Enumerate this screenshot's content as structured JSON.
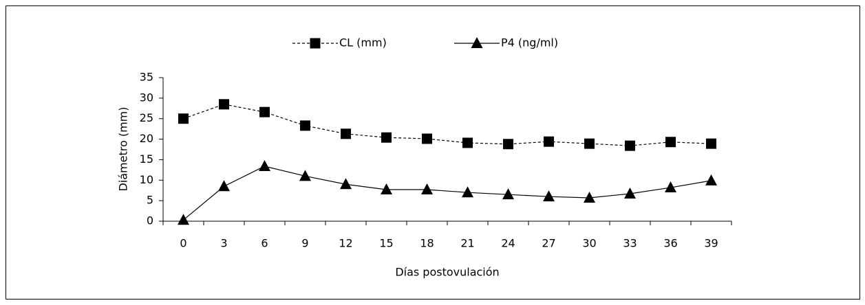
{
  "chart_data": {
    "type": "line",
    "xlabel": "Días postovulación",
    "ylabel": "Diámetro (mm)",
    "categories": [
      "0",
      "3",
      "6",
      "9",
      "12",
      "15",
      "18",
      "21",
      "24",
      "27",
      "30",
      "33",
      "36",
      "39"
    ],
    "series": [
      {
        "name": "CL (mm)",
        "color": "#000000",
        "line_style": "dashed",
        "marker": "square",
        "values": [
          25,
          28.5,
          26.6,
          23.3,
          21.3,
          20.4,
          20.1,
          19.1,
          18.8,
          19.4,
          18.9,
          18.4,
          19.3,
          18.9
        ]
      },
      {
        "name": "P4 (ng/ml)",
        "color": "#000000",
        "line_style": "solid",
        "marker": "triangle",
        "values": [
          0.3,
          8.5,
          13.4,
          11,
          9,
          7.7,
          7.7,
          7,
          6.5,
          6,
          5.7,
          6.7,
          8.2,
          9.9
        ]
      }
    ],
    "ylim": [
      0,
      35
    ],
    "yticks": [
      0,
      5,
      10,
      15,
      20,
      25,
      30,
      35
    ],
    "grid": false,
    "legend": "top"
  }
}
